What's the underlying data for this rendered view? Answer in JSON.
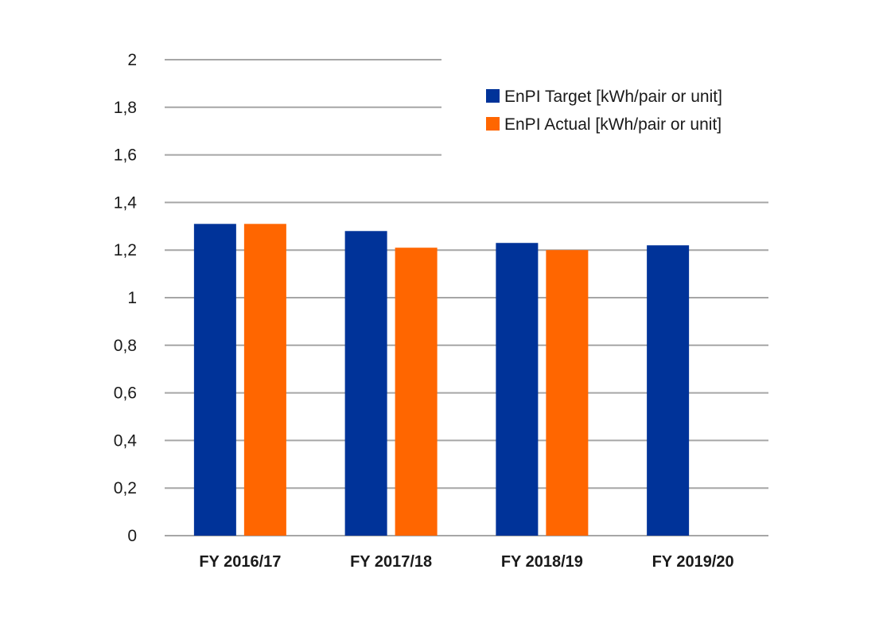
{
  "chart_data": {
    "type": "bar",
    "categories": [
      "FY 2016/17",
      "FY 2017/18",
      "FY 2018/19",
      "FY 2019/20"
    ],
    "series": [
      {
        "name": "EnPI Target [kWh/pair or unit]",
        "color": "#003399",
        "values": [
          1.31,
          1.28,
          1.23,
          1.22
        ]
      },
      {
        "name": "EnPI Actual [kWh/pair or unit]",
        "color": "#ff6600",
        "values": [
          1.31,
          1.21,
          1.2,
          null
        ]
      }
    ],
    "ylim": [
      0,
      2
    ],
    "yticks": [
      0,
      0.2,
      0.4,
      0.6,
      0.8,
      1,
      1.2,
      1.4,
      1.6,
      1.8,
      2
    ],
    "ytick_labels": [
      "0",
      "0,2",
      "0,4",
      "0,6",
      "0,8",
      "1",
      "1,2",
      "1,4",
      "1,6",
      "1,8",
      "2"
    ],
    "xlabel": "",
    "ylabel": "",
    "title": "",
    "grid": true,
    "gridline_color": "#a6a6a6",
    "legend_position": "top-right"
  }
}
